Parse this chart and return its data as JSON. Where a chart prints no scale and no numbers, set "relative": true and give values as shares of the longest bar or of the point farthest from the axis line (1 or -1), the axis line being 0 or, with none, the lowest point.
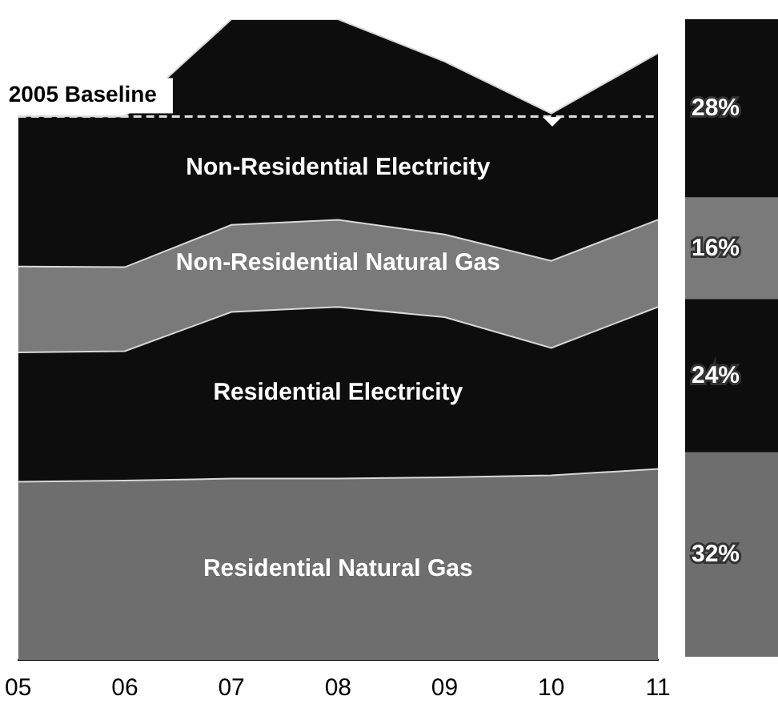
{
  "chart_data": [
    {
      "type": "area",
      "stacked": true,
      "relative": true,
      "tick_labels": "x",
      "categories": [
        "05",
        "06",
        "07",
        "08",
        "09",
        "10",
        "11"
      ],
      "series": [
        {
          "name": "Residential Natural Gas",
          "color": "#6e6e6e",
          "values": [
            0.278,
            0.28,
            0.283,
            0.283,
            0.285,
            0.288,
            0.298
          ]
        },
        {
          "name": "Residential Electricity",
          "color": "#0d0d0d",
          "values": [
            0.202,
            0.202,
            0.26,
            0.268,
            0.25,
            0.199,
            0.253
          ]
        },
        {
          "name": "Non-Residential Natural Gas",
          "color": "#7a7a7a",
          "values": [
            0.134,
            0.131,
            0.136,
            0.136,
            0.129,
            0.136,
            0.136
          ]
        },
        {
          "name": "Non-Residential Electricity",
          "color": "#0d0d0d",
          "values": [
            0.235,
            0.235,
            0.321,
            0.313,
            0.27,
            0.23,
            0.26
          ]
        }
      ],
      "ref_lines": [
        {
          "axis": "y",
          "value": 0.848,
          "label": "2005 Baseline",
          "color": "#dddddd",
          "line_style": "dashed"
        }
      ]
    },
    {
      "type": "bar",
      "stacked": true,
      "tick_labels": false,
      "categories": [
        null
      ],
      "series": [
        {
          "color": "#6e6e6e",
          "values": [
            32
          ],
          "value_labels": [
            "32%"
          ]
        },
        {
          "color": "#0d0d0d",
          "values": [
            24
          ],
          "value_labels": [
            "24%"
          ]
        },
        {
          "color": "#7a7a7a",
          "values": [
            16
          ],
          "value_labels": [
            "16%"
          ]
        },
        {
          "color": "#0d0d0d",
          "values": [
            28
          ],
          "value_labels": [
            "28%"
          ]
        }
      ]
    }
  ]
}
